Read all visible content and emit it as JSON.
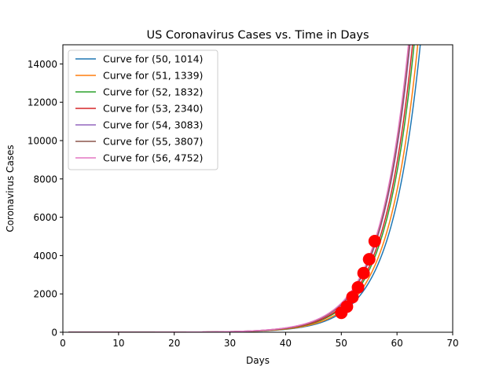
{
  "chart_data": {
    "type": "line",
    "title": "US Coronavirus Cases vs. Time in Days",
    "xlabel": "Days",
    "ylabel": "Coronavirus Cases",
    "xlim": [
      0,
      70
    ],
    "ylim": [
      0,
      15000
    ],
    "xticks": [
      0,
      10,
      20,
      30,
      40,
      50,
      60,
      70
    ],
    "yticks": [
      0,
      2000,
      4000,
      6000,
      8000,
      10000,
      12000,
      14000
    ],
    "grid": false,
    "legend_position": "upper-left",
    "growth_rate": 0.19,
    "curve_x_range": [
      1,
      70
    ],
    "series": [
      {
        "name": "Curve for (50, 1014)",
        "x0": 50,
        "y0": 1014,
        "color": "#1f77b4"
      },
      {
        "name": "Curve for (51, 1339)",
        "x0": 51,
        "y0": 1339,
        "color": "#ff7f0e"
      },
      {
        "name": "Curve for (52, 1832)",
        "x0": 52,
        "y0": 1832,
        "color": "#2ca02c"
      },
      {
        "name": "Curve for (53, 2340)",
        "x0": 53,
        "y0": 2340,
        "color": "#d62728"
      },
      {
        "name": "Curve for (54, 3083)",
        "x0": 54,
        "y0": 3083,
        "color": "#9467bd"
      },
      {
        "name": "Curve for (55, 3807)",
        "x0": 55,
        "y0": 3807,
        "color": "#8c564b"
      },
      {
        "name": "Curve for (56, 4752)",
        "x0": 56,
        "y0": 4752,
        "color": "#e377c2"
      }
    ],
    "points": {
      "color": "#ff0000",
      "x": [
        50,
        51,
        52,
        53,
        54,
        55,
        56
      ],
      "y": [
        1014,
        1339,
        1832,
        2340,
        3083,
        3807,
        4752
      ]
    }
  }
}
